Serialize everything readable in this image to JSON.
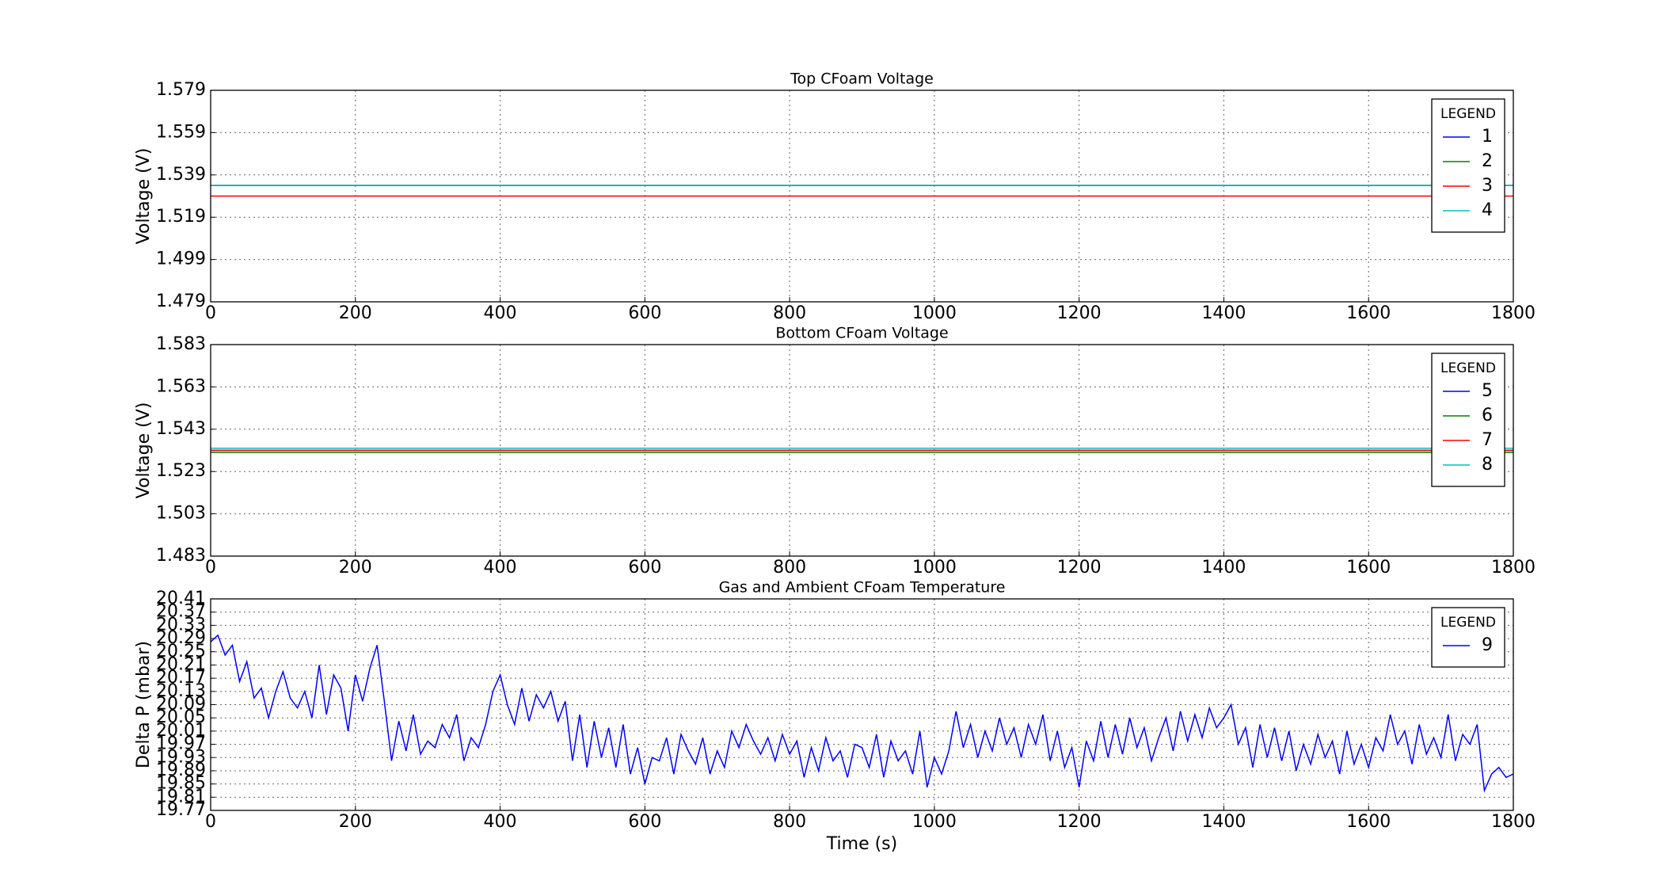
{
  "chart_data": [
    {
      "type": "line",
      "title": "Top CFoam Voltage",
      "y_label": "Voltage (V)",
      "legend_title": "LEGEND",
      "legend": "upper right",
      "grid": true,
      "x": [
        0,
        1800
      ],
      "xlim": [
        0,
        1800
      ],
      "xticks": [
        0,
        200,
        400,
        600,
        800,
        1000,
        1200,
        1400,
        1600,
        1800
      ],
      "ylim": [
        1.479,
        1.579
      ],
      "yticks": [
        1.479,
        1.499,
        1.519,
        1.539,
        1.559,
        1.579
      ],
      "series": [
        {
          "name": "1",
          "color": "#0000ff",
          "values": [
            1.534,
            1.534
          ]
        },
        {
          "name": "2",
          "color": "#008000",
          "values": [
            1.534,
            1.534
          ]
        },
        {
          "name": "3",
          "color": "#ff0000",
          "values": [
            1.529,
            1.529
          ]
        },
        {
          "name": "4",
          "color": "#00bfbf",
          "values": [
            1.534,
            1.534
          ]
        }
      ]
    },
    {
      "type": "line",
      "title": "Bottom CFoam Voltage",
      "y_label": "Voltage (V)",
      "legend_title": "LEGEND",
      "legend": "upper right",
      "grid": true,
      "x": [
        0,
        1800
      ],
      "xlim": [
        0,
        1800
      ],
      "xticks": [
        0,
        200,
        400,
        600,
        800,
        1000,
        1200,
        1400,
        1600,
        1800
      ],
      "ylim": [
        1.483,
        1.583
      ],
      "yticks": [
        1.483,
        1.503,
        1.523,
        1.543,
        1.563,
        1.583
      ],
      "series": [
        {
          "name": "5",
          "color": "#0000ff",
          "values": [
            1.533,
            1.533
          ]
        },
        {
          "name": "6",
          "color": "#008000",
          "values": [
            1.532,
            1.532
          ]
        },
        {
          "name": "7",
          "color": "#ff0000",
          "values": [
            1.533,
            1.533
          ]
        },
        {
          "name": "8",
          "color": "#00bfbf",
          "values": [
            1.534,
            1.534
          ]
        }
      ]
    },
    {
      "type": "line",
      "title": "Gas and Ambient CFoam Temperature",
      "y_label": "Delta P (mbar)",
      "x_label": "Time (s)",
      "legend_title": "LEGEND",
      "legend": "upper right",
      "grid": true,
      "x": [
        0,
        10,
        20,
        30,
        40,
        50,
        60,
        70,
        80,
        90,
        100,
        110,
        120,
        130,
        140,
        150,
        160,
        170,
        180,
        190,
        200,
        210,
        220,
        230,
        240,
        250,
        260,
        270,
        280,
        290,
        300,
        310,
        320,
        330,
        340,
        350,
        360,
        370,
        380,
        390,
        400,
        410,
        420,
        430,
        440,
        450,
        460,
        470,
        480,
        490,
        500,
        510,
        520,
        530,
        540,
        550,
        560,
        570,
        580,
        590,
        600,
        610,
        620,
        630,
        640,
        650,
        660,
        670,
        680,
        690,
        700,
        710,
        720,
        730,
        740,
        750,
        760,
        770,
        780,
        790,
        800,
        810,
        820,
        830,
        840,
        850,
        860,
        870,
        880,
        890,
        900,
        910,
        920,
        930,
        940,
        950,
        960,
        970,
        980,
        990,
        1000,
        1010,
        1020,
        1030,
        1040,
        1050,
        1060,
        1070,
        1080,
        1090,
        1100,
        1110,
        1120,
        1130,
        1140,
        1150,
        1160,
        1170,
        1180,
        1190,
        1200,
        1210,
        1220,
        1230,
        1240,
        1250,
        1260,
        1270,
        1280,
        1290,
        1300,
        1310,
        1320,
        1330,
        1340,
        1350,
        1360,
        1370,
        1380,
        1390,
        1400,
        1410,
        1420,
        1430,
        1440,
        1450,
        1460,
        1470,
        1480,
        1490,
        1500,
        1510,
        1520,
        1530,
        1540,
        1550,
        1560,
        1570,
        1580,
        1590,
        1600,
        1610,
        1620,
        1630,
        1640,
        1650,
        1660,
        1670,
        1680,
        1690,
        1700,
        1710,
        1720,
        1730,
        1740,
        1750,
        1760,
        1770,
        1780,
        1790,
        1800
      ],
      "xlim": [
        0,
        1800
      ],
      "xticks": [
        0,
        200,
        400,
        600,
        800,
        1000,
        1200,
        1400,
        1600,
        1800
      ],
      "ylim": [
        19.77,
        20.41
      ],
      "yticks": [
        19.77,
        19.81,
        19.85,
        19.89,
        19.93,
        19.97,
        20.01,
        20.05,
        20.09,
        20.13,
        20.17,
        20.21,
        20.25,
        20.29,
        20.33,
        20.37,
        20.41
      ],
      "series": [
        {
          "name": "9",
          "color": "#0000ff",
          "values": [
            20.28,
            20.3,
            20.24,
            20.27,
            20.16,
            20.22,
            20.11,
            20.14,
            20.05,
            20.13,
            20.19,
            20.11,
            20.08,
            20.13,
            20.05,
            20.21,
            20.06,
            20.18,
            20.14,
            20.01,
            20.18,
            20.1,
            20.2,
            20.27,
            20.1,
            19.92,
            20.04,
            19.95,
            20.06,
            19.94,
            19.98,
            19.96,
            20.03,
            19.99,
            20.06,
            19.92,
            19.99,
            19.96,
            20.03,
            20.13,
            20.18,
            20.09,
            20.03,
            20.14,
            20.04,
            20.12,
            20.08,
            20.13,
            20.04,
            20.1,
            19.92,
            20.06,
            19.9,
            20.04,
            19.93,
            20.02,
            19.9,
            20.03,
            19.88,
            19.96,
            19.85,
            19.93,
            19.92,
            19.99,
            19.88,
            20.0,
            19.95,
            19.91,
            19.99,
            19.88,
            19.95,
            19.9,
            20.01,
            19.96,
            20.03,
            19.98,
            19.94,
            19.99,
            19.92,
            20.0,
            19.94,
            19.98,
            19.87,
            19.96,
            19.89,
            19.99,
            19.92,
            19.95,
            19.87,
            19.97,
            19.96,
            19.9,
            20.0,
            19.87,
            19.98,
            19.92,
            19.95,
            19.88,
            20.01,
            19.84,
            19.93,
            19.88,
            19.95,
            20.07,
            19.96,
            20.03,
            19.93,
            20.01,
            19.95,
            20.05,
            19.97,
            20.02,
            19.93,
            20.03,
            19.97,
            20.06,
            19.92,
            20.01,
            19.9,
            19.96,
            19.84,
            19.98,
            19.92,
            20.04,
            19.93,
            20.03,
            19.94,
            20.05,
            19.96,
            20.02,
            19.92,
            19.99,
            20.05,
            19.95,
            20.07,
            19.98,
            20.06,
            19.99,
            20.08,
            20.02,
            20.05,
            20.09,
            19.97,
            20.02,
            19.9,
            20.03,
            19.93,
            20.02,
            19.92,
            20.01,
            19.89,
            19.97,
            19.91,
            20.0,
            19.93,
            19.98,
            19.88,
            20.01,
            19.91,
            19.97,
            19.9,
            19.99,
            19.95,
            20.06,
            19.97,
            20.01,
            19.91,
            20.03,
            19.94,
            19.99,
            19.93,
            20.06,
            19.92,
            20.0,
            19.97,
            20.03,
            19.83,
            19.88,
            19.9,
            19.87,
            19.88
          ]
        }
      ]
    }
  ]
}
